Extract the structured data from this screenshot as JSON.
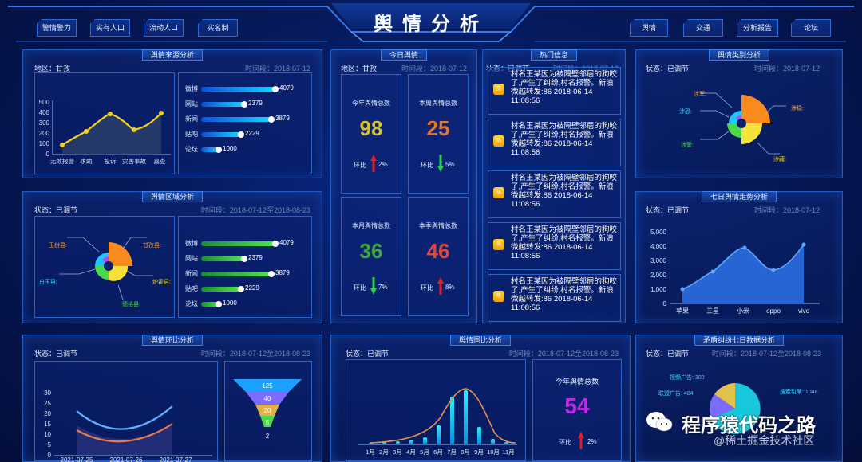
{
  "header": {
    "title": "舆情分析",
    "left_nav": [
      "警情警力",
      "实有人口",
      "流动人口",
      "实名制"
    ],
    "right_nav": [
      "舆情",
      "交通",
      "分析报告",
      "论坛"
    ]
  },
  "source_panel": {
    "title": "舆情来源分析",
    "region": "地区：甘孜",
    "time": "时间段：2018-07-12",
    "line_yticks": [
      "500",
      "400",
      "300",
      "200",
      "100",
      "0"
    ],
    "line_xticks": [
      "无效报警",
      "求助",
      "投诉",
      "灾害事故",
      "嘉查"
    ],
    "bars": [
      {
        "label": "微博",
        "value": "4079"
      },
      {
        "label": "网站",
        "value": "2379"
      },
      {
        "label": "新闻",
        "value": "3879"
      },
      {
        "label": "贴吧",
        "value": "2229"
      },
      {
        "label": "论坛",
        "value": "1000"
      }
    ]
  },
  "region_panel": {
    "title": "舆情区域分析",
    "status": "状态：已调节",
    "time": "时间段：2018-07-12至2018-08-23",
    "pie_labels": [
      "玉树县:",
      "甘孜县:",
      "白玉县:",
      "炉霍县:",
      "德格县:"
    ],
    "bars": [
      {
        "label": "微博",
        "value": "4079"
      },
      {
        "label": "网站",
        "value": "2379"
      },
      {
        "label": "新闻",
        "value": "3879"
      },
      {
        "label": "贴吧",
        "value": "2229"
      },
      {
        "label": "论坛",
        "value": "1000"
      }
    ]
  },
  "ring_panel": {
    "title": "舆情环比分析",
    "status": "状态：已调节",
    "time": "时间段：2018-07-12至2018-08-23",
    "yticks": [
      "30",
      "25",
      "20",
      "15",
      "10",
      "5",
      "0"
    ],
    "xticks": [
      "2021-07-25",
      "2021-07-26",
      "2021-07-27"
    ],
    "funnel": [
      "125",
      "40",
      "20",
      "5",
      "2"
    ]
  },
  "today_panel": {
    "title": "今日舆情",
    "region": "地区：甘孜",
    "time": "时间段：2018-07-12",
    "change_label": "环比",
    "cards": [
      {
        "title": "今年舆情总数",
        "value": "98",
        "pct": "2%",
        "dir": "up",
        "color": "#d6c22a"
      },
      {
        "title": "本周舆情总数",
        "value": "25",
        "pct": "5%",
        "dir": "down",
        "color": "#e8742a"
      },
      {
        "title": "本月舆情总数",
        "value": "36",
        "pct": "7%",
        "dir": "down",
        "color": "#3fa83a"
      },
      {
        "title": "本季舆情总数",
        "value": "46",
        "pct": "8%",
        "dir": "up",
        "color": "#e2463a"
      }
    ]
  },
  "hot_panel": {
    "title": "热门信息",
    "status": "状态：已调节",
    "time": "时间段：2018-07-12",
    "icon_text": "热",
    "items": [
      "村名王某因为被隔壁邻居的狗咬了,产生了纠纷,村名报警。新浪微越转发:86 2018-06-14 11:08:56",
      "村名王某因为被隔壁邻居的狗咬了,产生了纠纷,村名报警。新浪微越转发:86 2018-06-14 11:08:56",
      "村名王某因为被隔壁邻居的狗咬了,产生了纠纷,村名报警。新浪微越转发:86 2018-06-14 11:08:56",
      "村名王某因为被隔壁邻居的狗咬了,产生了纠纷,村名报警。新浪微越转发:86 2018-06-14 11:08:56",
      "村名王某因为被隔壁邻居的狗咬了,产生了纠纷,村名报警。新浪微越转发:86 2018-06-14 11:08:56"
    ]
  },
  "yoy_panel": {
    "title": "舆情同比分析",
    "status": "状态：已调节",
    "time": "时间段：2018-07-12至2018-08-23",
    "xticks": [
      "1月",
      "2月",
      "3月",
      "4月",
      "5月",
      "6月",
      "7月",
      "8月",
      "9月",
      "10月",
      "11月"
    ],
    "year_title": "今年舆情总数",
    "year_value": "54",
    "change_label": "环比",
    "change_pct": "2%"
  },
  "category_panel": {
    "title": "舆情类别分析",
    "status": "状态：已调节",
    "time": "时间段：2018-07-12",
    "labels": [
      "涉军:",
      "涉恐:",
      "涉稳:",
      "涉警:",
      "涉藏:"
    ]
  },
  "trend_panel": {
    "title": "七日舆情走势分析",
    "status": "状态：已调节",
    "time": "时间段：2018-07-12",
    "yticks": [
      "5,000",
      "4,000",
      "3,000",
      "2,000",
      "1,000",
      "0"
    ],
    "xticks": [
      "苹果",
      "三星",
      "小米",
      "oppo",
      "vivo"
    ]
  },
  "dispute_panel": {
    "title": "矛盾纠纷七日数据分析",
    "status": "状态：已调节",
    "time": "时间段：2018-07-12至2018-08-23",
    "labels": [
      "视频广告: 300",
      "联盟广告: 484",
      "搜索引擎: 1048"
    ]
  },
  "watermark": {
    "brand": "程序猿代码之路",
    "sub": "@稀土掘金技术社区"
  },
  "chart_data": [
    {
      "type": "line",
      "title": "舆情来源分析",
      "x": [
        "无效报警",
        "求助",
        "投诉",
        "灾害事故",
        "嘉查"
      ],
      "values": [
        90,
        220,
        390,
        230,
        400
      ],
      "ylim": [
        0,
        500
      ]
    },
    {
      "type": "bar",
      "title": "舆情来源分析",
      "categories": [
        "微博",
        "网站",
        "新闻",
        "贴吧",
        "论坛"
      ],
      "values": [
        4079,
        2379,
        3879,
        2229,
        1000
      ]
    },
    {
      "type": "bar",
      "title": "舆情区域分析",
      "categories": [
        "微博",
        "网站",
        "新闻",
        "贴吧",
        "论坛"
      ],
      "values": [
        4079,
        2379,
        3879,
        2229,
        1000
      ]
    },
    {
      "type": "area",
      "title": "七日舆情走势分析",
      "x": [
        "苹果",
        "三星",
        "小米",
        "oppo",
        "vivo"
      ],
      "values": [
        1000,
        2200,
        3800,
        2300,
        4000
      ],
      "ylim": [
        0,
        5000
      ]
    },
    {
      "type": "line",
      "title": "舆情环比分析",
      "x": [
        "2021-07-25",
        "2021-07-26",
        "2021-07-27"
      ],
      "series": [
        {
          "values": [
            20,
            6,
            24
          ]
        },
        {
          "values": [
            12,
            2,
            15
          ]
        }
      ],
      "ylim": [
        0,
        30
      ]
    },
    {
      "type": "bar",
      "title": "舆情同比分析",
      "categories": [
        "1月",
        "2月",
        "3月",
        "4月",
        "5月",
        "6月",
        "7月",
        "8月",
        "9月",
        "10月",
        "11月"
      ],
      "values": [
        1,
        2,
        2,
        3,
        4,
        9,
        22,
        30,
        9,
        3,
        1
      ]
    },
    {
      "type": "pie",
      "title": "矛盾纠纷七日数据分析",
      "categories": [
        "视频广告",
        "联盟广告",
        "搜索引擎"
      ],
      "values": [
        300,
        484,
        1048
      ]
    }
  ]
}
